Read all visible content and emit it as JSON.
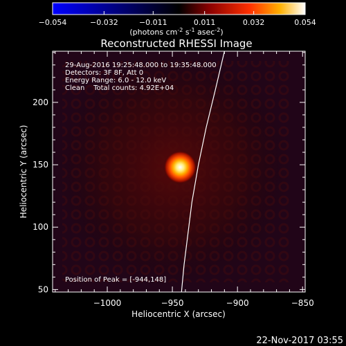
{
  "colorbar": {
    "ticks": [
      "-0.054",
      "-0.032",
      "-0.011",
      "0.011",
      "0.032",
      "0.054"
    ],
    "min": -0.054,
    "max": 0.054,
    "unit_base": "(photons cm",
    "unit_exp1": "-2",
    "unit_mid": " s",
    "unit_exp2": "-1",
    "unit_mid2": " asec",
    "unit_exp3": "-2",
    "unit_end": ")",
    "colors": [
      "#0000ff",
      "#000000",
      "#b00000",
      "#ff4000",
      "#ffc000",
      "#ffffff"
    ]
  },
  "chart_data": {
    "type": "heatmap",
    "title": "Reconstructed RHESSI Image",
    "xlabel": "Heliocentric X (arcsec)",
    "ylabel": "Heliocentric Y (arcsec)",
    "xlim": [
      -1042,
      -848
    ],
    "ylim": [
      48,
      241
    ],
    "x_ticks": [
      -1000,
      -950,
      -900,
      -850
    ],
    "x_tick_labels": [
      "−1000",
      "−950",
      "−900",
      "−850"
    ],
    "y_ticks": [
      50,
      100,
      150,
      200
    ],
    "y_tick_labels": [
      "50",
      "100",
      "150",
      "200"
    ],
    "source_peak": {
      "x": -944,
      "y": 148
    },
    "limb_curve": [
      {
        "x": -943,
        "y": 48
      },
      {
        "x": -941,
        "y": 70
      },
      {
        "x": -938,
        "y": 95
      },
      {
        "x": -935,
        "y": 120
      },
      {
        "x": -930,
        "y": 150
      },
      {
        "x": -924,
        "y": 180
      },
      {
        "x": -917,
        "y": 210
      },
      {
        "x": -910,
        "y": 241
      }
    ],
    "annotations": [
      "29-Aug-2016 19:25:48.000 to 19:35:48.000",
      "Detectors: 3F 8F, Att 0",
      "Energy Range: 6.0 - 12.0 keV",
      "Clean    Total counts: 4.92E+04"
    ],
    "peak_label": "Position of Peak = [-944,148]"
  },
  "footer": {
    "timestamp": "22-Nov-2017 03:55"
  }
}
